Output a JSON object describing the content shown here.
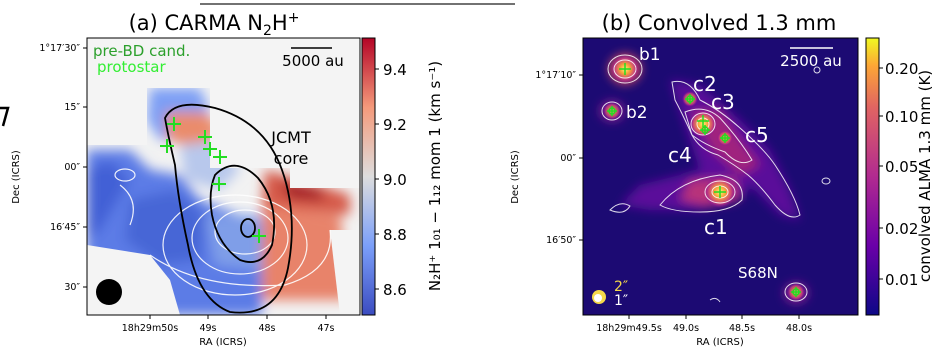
{
  "panel_a": {
    "title_prefix": "(a) CARMA N",
    "title_sub": "2",
    "title_mid": "H",
    "title_sup": "+",
    "legend_prebd": "pre-BD cand.",
    "legend_protostar": "protostar",
    "scalebar_label": "5000 au",
    "jcmt_line1": "JCMT",
    "jcmt_line2": "core",
    "xlabel": "RA (ICRS)",
    "ylabel": "Dec (ICRS)",
    "xticks": [
      "18h29m50s",
      "49s",
      "48s",
      "47s"
    ],
    "yticks": [
      "1°17′30″",
      "15″",
      "00″",
      "16′45″",
      "30″"
    ],
    "colorbar_label": "N₂H⁺ 1₀₁ − 1₁₂ mom 1 (km s⁻¹)",
    "colorbar_ticks": [
      "9.4",
      "9.2",
      "9.0",
      "8.8",
      "8.6"
    ]
  },
  "panel_b": {
    "title": "(b) Convolved 1.3 mm",
    "scalebar_label": "2500 au",
    "xlabel": "RA (ICRS)",
    "ylabel": "Dec (ICRS)",
    "xticks": [
      "18h29m49.5s",
      "49.0s",
      "48.5s",
      "48.0s"
    ],
    "yticks": [
      "1°17′10″",
      "00″",
      "16′50″"
    ],
    "source_labels": [
      "b1",
      "b2",
      "c2",
      "c3",
      "c5",
      "c4",
      "c1",
      "S68N"
    ],
    "beam_label_2": "2″",
    "beam_label_1": "1″",
    "colorbar_label": "convolved ALMA 1.3 mm (K)",
    "colorbar_ticks": [
      "0.20",
      "0.10",
      "0.05",
      "0.02",
      "0.01"
    ]
  },
  "colors": {
    "cross_green": "#22dd22",
    "legend_green_dark": "#2ca02c",
    "legend_green_light": "#33ee33",
    "background_b": "#1c0a73"
  },
  "chart_data": [
    {
      "type": "heatmap",
      "title": "(a) CARMA N₂H⁺",
      "xlabel": "RA (ICRS)",
      "ylabel": "Dec (ICRS)",
      "colorbar": {
        "label": "N₂H⁺ 1₀₁ − 1₁₂ mom 1 (km s⁻¹)",
        "range": [
          8.5,
          9.5
        ],
        "ticks": [
          8.6,
          8.8,
          9.0,
          9.2,
          9.4
        ]
      },
      "legend": [
        "pre-BD cand.",
        "protostar"
      ],
      "annotations": [
        "5000 au",
        "JCMT core"
      ]
    },
    {
      "type": "heatmap",
      "title": "(b) Convolved 1.3 mm",
      "xlabel": "RA (ICRS)",
      "ylabel": "Dec (ICRS)",
      "colorbar": {
        "label": "convolved ALMA 1.3 mm (K)",
        "scale": "log",
        "range": [
          0.006,
          0.25
        ],
        "ticks": [
          0.01,
          0.02,
          0.05,
          0.1,
          0.2
        ]
      },
      "sources": [
        "b1",
        "b2",
        "c2",
        "c3",
        "c5",
        "c4",
        "c1",
        "S68N"
      ],
      "annotations": [
        "2500 au",
        "2″",
        "1″"
      ]
    }
  ]
}
